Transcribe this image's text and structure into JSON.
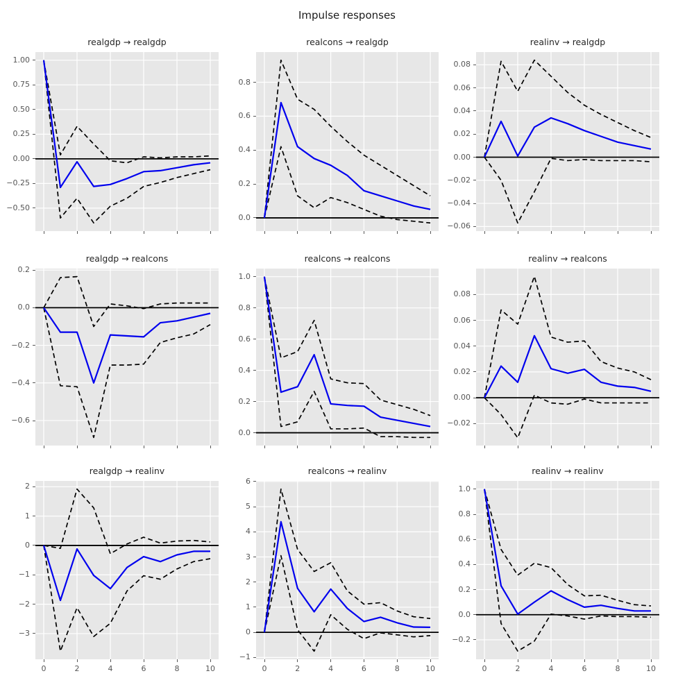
{
  "figure": {
    "title": "Impulse responses"
  },
  "style": {
    "irf_color": "#0000ee",
    "bound_color": "#000000",
    "zero_line_color": "#000000",
    "axes_bg": "#e7e7e7",
    "grid_color": "#ffffff",
    "tick_label_color": "#555555",
    "title_color": "#262626"
  },
  "x": [
    0,
    1,
    2,
    3,
    4,
    5,
    6,
    7,
    8,
    9,
    10
  ],
  "xticks": {
    "values": [
      0,
      2,
      4,
      6,
      8,
      10
    ],
    "labels": [
      "0",
      "2",
      "4",
      "6",
      "8",
      "10"
    ]
  },
  "chart_data": [
    {
      "type": "line",
      "title": "realgdp → realgdp",
      "impulse": "realgdp",
      "response": "realgdp",
      "xlim": [
        -0.5,
        10.5
      ],
      "ylim": [
        -0.733,
        1.083
      ],
      "yticks": {
        "values": [
          1.0,
          0.75,
          0.5,
          0.25,
          0.0,
          -0.25,
          -0.5
        ],
        "labels": [
          "1.00",
          "0.75",
          "0.50",
          "0.25",
          "0.00",
          "−0.25",
          "−0.50"
        ]
      },
      "series": [
        {
          "name": "irf",
          "values": [
            1.0,
            -0.29,
            -0.03,
            -0.28,
            -0.26,
            -0.2,
            -0.13,
            -0.12,
            -0.09,
            -0.06,
            -0.04
          ]
        },
        {
          "name": "upper-ci",
          "values": [
            1.0,
            0.04,
            0.33,
            0.15,
            -0.02,
            -0.04,
            0.02,
            0.01,
            0.02,
            0.02,
            0.03
          ]
        },
        {
          "name": "lower-ci",
          "values": [
            1.0,
            -0.6,
            -0.4,
            -0.65,
            -0.48,
            -0.4,
            -0.28,
            -0.24,
            -0.19,
            -0.15,
            -0.11
          ]
        }
      ]
    },
    {
      "type": "line",
      "title": "realcons → realgdp",
      "impulse": "realcons",
      "response": "realgdp",
      "xlim": [
        -0.5,
        10.5
      ],
      "ylim": [
        -0.078,
        0.978
      ],
      "yticks": {
        "values": [
          0.8,
          0.6,
          0.4,
          0.2,
          0.0
        ],
        "labels": [
          "0.8",
          "0.6",
          "0.4",
          "0.2",
          "0.0"
        ]
      },
      "series": [
        {
          "name": "irf",
          "values": [
            0.0,
            0.68,
            0.42,
            0.35,
            0.31,
            0.25,
            0.16,
            0.13,
            0.1,
            0.07,
            0.05
          ]
        },
        {
          "name": "upper-ci",
          "values": [
            0.0,
            0.93,
            0.7,
            0.64,
            0.54,
            0.45,
            0.37,
            0.31,
            0.25,
            0.19,
            0.13
          ]
        },
        {
          "name": "lower-ci",
          "values": [
            0.0,
            0.42,
            0.13,
            0.06,
            0.12,
            0.09,
            0.05,
            0.01,
            -0.01,
            -0.02,
            -0.03
          ]
        }
      ]
    },
    {
      "type": "line",
      "title": "realinv → realgdp",
      "impulse": "realinv",
      "response": "realgdp",
      "xlim": [
        -0.5,
        10.5
      ],
      "ylim": [
        -0.064,
        0.091
      ],
      "yticks": {
        "values": [
          0.08,
          0.06,
          0.04,
          0.02,
          0.0,
          -0.02,
          -0.04,
          -0.06
        ],
        "labels": [
          "0.08",
          "0.06",
          "0.04",
          "0.02",
          "0.00",
          "−0.02",
          "−0.04",
          "−0.06"
        ]
      },
      "series": [
        {
          "name": "irf",
          "values": [
            0.0,
            0.031,
            0.001,
            0.026,
            0.034,
            0.029,
            0.023,
            0.018,
            0.013,
            0.01,
            0.007
          ]
        },
        {
          "name": "upper-ci",
          "values": [
            0.0,
            0.083,
            0.057,
            0.084,
            0.07,
            0.056,
            0.045,
            0.037,
            0.03,
            0.023,
            0.017
          ]
        },
        {
          "name": "lower-ci",
          "values": [
            0.0,
            -0.02,
            -0.057,
            -0.03,
            -0.001,
            -0.003,
            -0.002,
            -0.003,
            -0.003,
            -0.003,
            -0.004
          ]
        }
      ]
    },
    {
      "type": "line",
      "title": "realgdp → realcons",
      "impulse": "realgdp",
      "response": "realcons",
      "xlim": [
        -0.5,
        10.5
      ],
      "ylim": [
        -0.733,
        0.208
      ],
      "yticks": {
        "values": [
          0.2,
          0.0,
          -0.2,
          -0.4,
          -0.6
        ],
        "labels": [
          "0.2",
          "0.0",
          "−0.2",
          "−0.4",
          "−0.6"
        ]
      },
      "series": [
        {
          "name": "irf",
          "values": [
            0.0,
            -0.13,
            -0.13,
            -0.4,
            -0.145,
            -0.15,
            -0.155,
            -0.08,
            -0.07,
            -0.05,
            -0.03
          ]
        },
        {
          "name": "upper-ci",
          "values": [
            0.0,
            0.16,
            0.165,
            -0.1,
            0.02,
            0.01,
            -0.005,
            0.02,
            0.025,
            0.025,
            0.025
          ]
        },
        {
          "name": "lower-ci",
          "values": [
            0.0,
            -0.415,
            -0.42,
            -0.69,
            -0.305,
            -0.305,
            -0.3,
            -0.185,
            -0.16,
            -0.14,
            -0.09
          ]
        }
      ]
    },
    {
      "type": "line",
      "title": "realcons → realcons",
      "impulse": "realcons",
      "response": "realcons",
      "xlim": [
        -0.5,
        10.5
      ],
      "ylim": [
        -0.082,
        1.052
      ],
      "yticks": {
        "values": [
          1.0,
          0.8,
          0.6,
          0.4,
          0.2,
          0.0
        ],
        "labels": [
          "1.0",
          "0.8",
          "0.6",
          "0.4",
          "0.2",
          "0.0"
        ]
      },
      "series": [
        {
          "name": "irf",
          "values": [
            1.0,
            0.26,
            0.295,
            0.5,
            0.185,
            0.175,
            0.17,
            0.1,
            0.08,
            0.06,
            0.04
          ]
        },
        {
          "name": "upper-ci",
          "values": [
            1.0,
            0.48,
            0.52,
            0.72,
            0.345,
            0.32,
            0.315,
            0.21,
            0.18,
            0.15,
            0.11
          ]
        },
        {
          "name": "lower-ci",
          "values": [
            1.0,
            0.04,
            0.07,
            0.265,
            0.025,
            0.025,
            0.03,
            -0.025,
            -0.025,
            -0.03,
            -0.03
          ]
        }
      ]
    },
    {
      "type": "line",
      "title": "realinv → realcons",
      "impulse": "realinv",
      "response": "realcons",
      "xlim": [
        -0.5,
        10.5
      ],
      "ylim": [
        -0.037,
        0.1
      ],
      "yticks": {
        "values": [
          0.08,
          0.06,
          0.04,
          0.02,
          0.0,
          -0.02
        ],
        "labels": [
          "0.08",
          "0.06",
          "0.04",
          "0.02",
          "0.00",
          "−0.02"
        ]
      },
      "series": [
        {
          "name": "irf",
          "values": [
            0.0,
            0.0245,
            0.012,
            0.048,
            0.0225,
            0.019,
            0.022,
            0.012,
            0.009,
            0.008,
            0.005
          ]
        },
        {
          "name": "upper-ci",
          "values": [
            0.0,
            0.068,
            0.057,
            0.094,
            0.047,
            0.043,
            0.044,
            0.028,
            0.023,
            0.02,
            0.014
          ]
        },
        {
          "name": "lower-ci",
          "values": [
            0.0,
            -0.013,
            -0.031,
            0.002,
            -0.004,
            -0.005,
            -0.001,
            -0.004,
            -0.004,
            -0.004,
            -0.004
          ]
        }
      ]
    },
    {
      "type": "line",
      "title": "realgdp → realinv",
      "impulse": "realgdp",
      "response": "realinv",
      "xlim": [
        -0.5,
        10.5
      ],
      "ylim": [
        -3.876,
        2.196
      ],
      "yticks": {
        "values": [
          2,
          1,
          0,
          -1,
          -2,
          -3
        ],
        "labels": [
          "2",
          "1",
          "0",
          "−1",
          "−2",
          "−3"
        ]
      },
      "series": [
        {
          "name": "irf",
          "values": [
            0.0,
            -1.87,
            -0.12,
            -1.02,
            -1.47,
            -0.75,
            -0.38,
            -0.55,
            -0.32,
            -0.2,
            -0.2
          ]
        },
        {
          "name": "upper-ci",
          "values": [
            0.0,
            -0.1,
            1.92,
            1.28,
            -0.28,
            0.05,
            0.28,
            0.08,
            0.15,
            0.17,
            0.12
          ]
        },
        {
          "name": "lower-ci",
          "values": [
            0.0,
            -3.6,
            -2.12,
            -3.1,
            -2.65,
            -1.55,
            -1.03,
            -1.15,
            -0.8,
            -0.55,
            -0.45
          ]
        }
      ]
    },
    {
      "type": "line",
      "title": "realcons → realinv",
      "impulse": "realcons",
      "response": "realinv",
      "xlim": [
        -0.5,
        10.5
      ],
      "ylim": [
        -1.073,
        6.023
      ],
      "yticks": {
        "values": [
          6,
          5,
          4,
          3,
          2,
          1,
          0,
          -1
        ],
        "labels": [
          "6",
          "5",
          "4",
          "3",
          "2",
          "1",
          "0",
          "−1"
        ]
      },
      "series": [
        {
          "name": "irf",
          "values": [
            0.0,
            4.4,
            1.75,
            0.82,
            1.72,
            0.95,
            0.43,
            0.6,
            0.38,
            0.21,
            0.2
          ]
        },
        {
          "name": "upper-ci",
          "values": [
            0.0,
            5.7,
            3.3,
            2.42,
            2.77,
            1.65,
            1.12,
            1.18,
            0.85,
            0.62,
            0.55
          ]
        },
        {
          "name": "lower-ci",
          "values": [
            0.0,
            3.05,
            0.1,
            -0.75,
            0.7,
            0.12,
            -0.25,
            -0.02,
            -0.1,
            -0.18,
            -0.13
          ]
        }
      ]
    },
    {
      "type": "line",
      "title": "realinv → realinv",
      "impulse": "realinv",
      "response": "realinv",
      "xlim": [
        -0.5,
        10.5
      ],
      "ylim": [
        -0.355,
        1.065
      ],
      "yticks": {
        "values": [
          1.0,
          0.8,
          0.6,
          0.4,
          0.2,
          0.0,
          -0.2
        ],
        "labels": [
          "1.0",
          "0.8",
          "0.6",
          "0.4",
          "0.2",
          "0.0",
          "−0.2"
        ]
      },
      "series": [
        {
          "name": "irf",
          "values": [
            1.0,
            0.23,
            0.005,
            0.1,
            0.19,
            0.12,
            0.06,
            0.075,
            0.05,
            0.03,
            0.03
          ]
        },
        {
          "name": "upper-ci",
          "values": [
            1.0,
            0.52,
            0.315,
            0.41,
            0.375,
            0.24,
            0.15,
            0.155,
            0.115,
            0.08,
            0.07
          ]
        },
        {
          "name": "lower-ci",
          "values": [
            1.0,
            -0.07,
            -0.29,
            -0.21,
            0.005,
            -0.01,
            -0.035,
            -0.01,
            -0.015,
            -0.015,
            -0.02
          ]
        }
      ]
    }
  ]
}
